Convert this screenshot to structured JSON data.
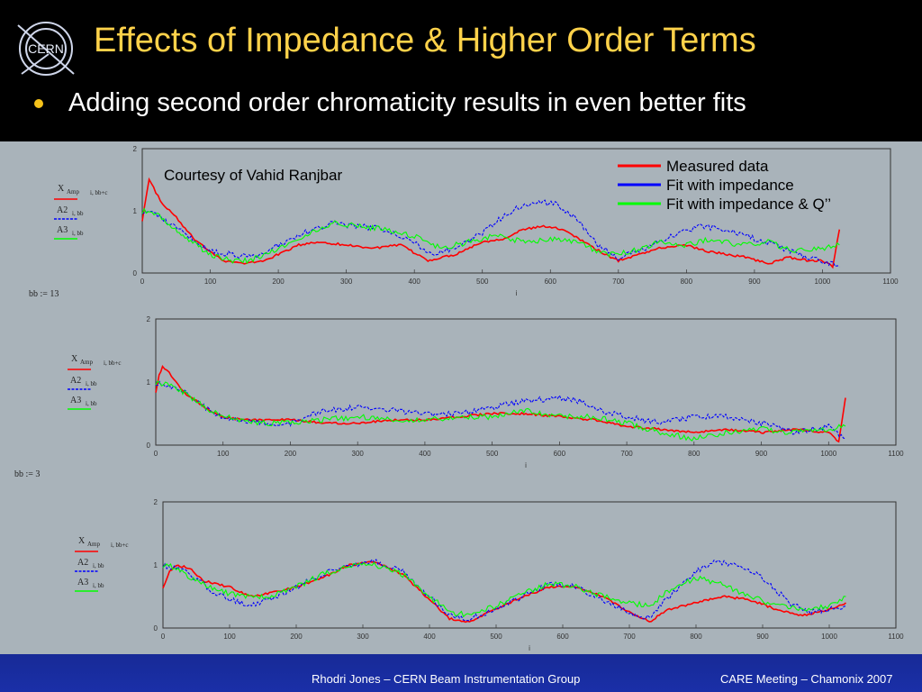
{
  "slide": {
    "title": "Effects of Impedance & Higher Order Terms",
    "bullet": "Adding second order chromaticity results in even better fits",
    "footer_left": "Rhodri Jones – CERN Beam Instrumentation Group",
    "footer_right": "CARE Meeting – Chamonix 2007",
    "logo_text": "CERN"
  },
  "annotations": {
    "courtesy": "Courtesy of Vahid Ranjbar"
  },
  "colors": {
    "measured": "#ff0000",
    "impedance": "#0000ff",
    "impedance_q2": "#00ff00",
    "title": "#ffd24a"
  },
  "legend": [
    {
      "label": "Measured data",
      "color": "#ff0000"
    },
    {
      "label": "Fit with impedance",
      "color": "#0000ff"
    },
    {
      "label": "Fit with impedance & Q’’",
      "color": "#00ff00"
    }
  ],
  "chart_data": [
    {
      "type": "line",
      "xlabel": "i",
      "ylim": [
        0,
        2
      ],
      "xlim": [
        0,
        1100
      ],
      "xticks": [
        0,
        100,
        200,
        300,
        400,
        500,
        600,
        700,
        800,
        900,
        1000,
        1100
      ],
      "yticks": [
        0,
        1,
        2
      ],
      "grid": false,
      "legend_placement": "top-right",
      "param_label": "",
      "y_labels": [
        "X",
        "Amp",
        "i, bb+c",
        "A2",
        "i, bb",
        "A3",
        "i, bb"
      ],
      "series": [
        {
          "name": "Measured data",
          "x": [
            0,
            10,
            20,
            30,
            40,
            50,
            60,
            80,
            100,
            120,
            150,
            180,
            200,
            230,
            260,
            300,
            340,
            380,
            420,
            460,
            500,
            530,
            560,
            590,
            620,
            650,
            680,
            700,
            730,
            760,
            800,
            830,
            860,
            890,
            920,
            950,
            980,
            1000,
            1015,
            1025
          ],
          "values": [
            0.85,
            1.5,
            1.3,
            1.1,
            1.0,
            0.9,
            0.75,
            0.5,
            0.35,
            0.2,
            0.15,
            0.2,
            0.3,
            0.45,
            0.5,
            0.45,
            0.4,
            0.45,
            0.2,
            0.3,
            0.5,
            0.55,
            0.7,
            0.75,
            0.7,
            0.5,
            0.3,
            0.2,
            0.3,
            0.4,
            0.45,
            0.35,
            0.3,
            0.25,
            0.15,
            0.25,
            0.2,
            0.2,
            0.1,
            0.7
          ]
        },
        {
          "name": "Fit with impedance",
          "x": [
            0,
            20,
            40,
            60,
            80,
            100,
            130,
            160,
            200,
            240,
            280,
            320,
            360,
            400,
            420,
            460,
            500,
            530,
            550,
            580,
            610,
            640,
            670,
            700,
            740,
            780,
            820,
            860,
            900,
            940,
            980,
            1000,
            1025
          ],
          "values": [
            1.0,
            0.95,
            0.8,
            0.65,
            0.5,
            0.35,
            0.3,
            0.25,
            0.45,
            0.65,
            0.8,
            0.75,
            0.7,
            0.5,
            0.3,
            0.4,
            0.65,
            0.9,
            1.05,
            1.15,
            1.1,
            0.85,
            0.45,
            0.25,
            0.4,
            0.6,
            0.75,
            0.7,
            0.55,
            0.4,
            0.25,
            0.2,
            0.1
          ]
        },
        {
          "name": "Fit with impedance & Q’’",
          "x": [
            0,
            20,
            40,
            60,
            80,
            100,
            130,
            160,
            200,
            240,
            280,
            320,
            360,
            400,
            440,
            480,
            520,
            560,
            600,
            640,
            680,
            720,
            760,
            800,
            840,
            880,
            920,
            960,
            1000,
            1025
          ],
          "values": [
            1.0,
            0.95,
            0.75,
            0.6,
            0.45,
            0.3,
            0.2,
            0.2,
            0.4,
            0.6,
            0.8,
            0.75,
            0.7,
            0.6,
            0.4,
            0.5,
            0.6,
            0.5,
            0.55,
            0.5,
            0.3,
            0.35,
            0.5,
            0.45,
            0.55,
            0.45,
            0.5,
            0.35,
            0.4,
            0.45
          ]
        }
      ]
    },
    {
      "type": "line",
      "xlabel": "i",
      "ylim": [
        0,
        2
      ],
      "xlim": [
        0,
        1100
      ],
      "xticks": [
        0,
        100,
        200,
        300,
        400,
        500,
        600,
        700,
        800,
        900,
        1000,
        1100
      ],
      "yticks": [
        0,
        1,
        2
      ],
      "grid": false,
      "param_label": "bb  :=  13",
      "y_labels": [
        "X",
        "Amp",
        "i, bb+c",
        "A2",
        "i, bb",
        "A3",
        "i, bb"
      ],
      "series": [
        {
          "name": "Measured data",
          "x": [
            0,
            5,
            10,
            20,
            30,
            40,
            60,
            80,
            100,
            130,
            160,
            200,
            250,
            300,
            350,
            400,
            450,
            500,
            550,
            600,
            650,
            700,
            750,
            800,
            850,
            900,
            950,
            1000,
            1015,
            1025
          ],
          "values": [
            0.85,
            1.1,
            1.25,
            1.15,
            1.0,
            0.85,
            0.7,
            0.55,
            0.45,
            0.4,
            0.4,
            0.4,
            0.35,
            0.35,
            0.4,
            0.4,
            0.45,
            0.5,
            0.5,
            0.45,
            0.4,
            0.3,
            0.25,
            0.2,
            0.25,
            0.2,
            0.25,
            0.2,
            0.05,
            0.75
          ]
        },
        {
          "name": "Fit with impedance",
          "x": [
            0,
            20,
            40,
            60,
            80,
            100,
            130,
            160,
            200,
            250,
            300,
            350,
            400,
            450,
            500,
            550,
            600,
            630,
            660,
            700,
            750,
            800,
            850,
            900,
            950,
            1000,
            1025
          ],
          "values": [
            1.0,
            0.95,
            0.85,
            0.7,
            0.55,
            0.45,
            0.4,
            0.35,
            0.35,
            0.55,
            0.6,
            0.55,
            0.5,
            0.5,
            0.6,
            0.7,
            0.75,
            0.7,
            0.55,
            0.45,
            0.35,
            0.45,
            0.45,
            0.35,
            0.2,
            0.3,
            0.1
          ]
        },
        {
          "name": "Fit with impedance & Q’’",
          "x": [
            0,
            20,
            40,
            60,
            80,
            100,
            130,
            160,
            200,
            250,
            300,
            350,
            400,
            450,
            500,
            550,
            600,
            650,
            700,
            750,
            800,
            850,
            900,
            950,
            1000,
            1025
          ],
          "values": [
            1.0,
            0.95,
            0.85,
            0.7,
            0.55,
            0.45,
            0.4,
            0.35,
            0.35,
            0.4,
            0.45,
            0.4,
            0.4,
            0.45,
            0.45,
            0.55,
            0.45,
            0.45,
            0.35,
            0.2,
            0.1,
            0.2,
            0.25,
            0.2,
            0.25,
            0.3
          ]
        }
      ]
    },
    {
      "type": "line",
      "xlabel": "i",
      "ylim": [
        0,
        2
      ],
      "xlim": [
        0,
        1100
      ],
      "xticks": [
        0,
        100,
        200,
        300,
        400,
        500,
        600,
        700,
        800,
        900,
        1000,
        1100
      ],
      "yticks": [
        0,
        1,
        2
      ],
      "grid": false,
      "param_label": "bb  :=  3",
      "y_labels": [
        "X",
        "Amp",
        "i, bb+c",
        "A2",
        "i, bb",
        "A3",
        "i, bb"
      ],
      "series": [
        {
          "name": "Measured data",
          "x": [
            0,
            10,
            20,
            40,
            60,
            80,
            100,
            130,
            160,
            200,
            240,
            280,
            320,
            360,
            400,
            430,
            460,
            500,
            540,
            580,
            620,
            660,
            700,
            730,
            760,
            800,
            840,
            880,
            920,
            960,
            1000,
            1025
          ],
          "values": [
            0.65,
            0.9,
            1.0,
            0.95,
            0.75,
            0.7,
            0.65,
            0.5,
            0.55,
            0.65,
            0.8,
            1.0,
            1.05,
            0.85,
            0.45,
            0.15,
            0.1,
            0.3,
            0.5,
            0.65,
            0.65,
            0.5,
            0.25,
            0.1,
            0.3,
            0.4,
            0.5,
            0.45,
            0.3,
            0.2,
            0.3,
            0.4
          ]
        },
        {
          "name": "Fit with impedance",
          "x": [
            0,
            20,
            40,
            60,
            80,
            100,
            130,
            160,
            200,
            240,
            280,
            320,
            360,
            400,
            430,
            460,
            500,
            540,
            580,
            620,
            660,
            700,
            730,
            760,
            800,
            830,
            860,
            900,
            940,
            970,
            1000,
            1025
          ],
          "values": [
            1.0,
            0.95,
            0.85,
            0.7,
            0.55,
            0.45,
            0.35,
            0.45,
            0.65,
            0.85,
            1.0,
            1.05,
            0.9,
            0.5,
            0.2,
            0.15,
            0.3,
            0.5,
            0.7,
            0.65,
            0.45,
            0.25,
            0.15,
            0.5,
            0.9,
            1.05,
            1.0,
            0.8,
            0.4,
            0.25,
            0.3,
            0.35
          ]
        },
        {
          "name": "Fit with impedance & Q’’",
          "x": [
            0,
            20,
            40,
            60,
            80,
            100,
            130,
            160,
            200,
            240,
            280,
            320,
            360,
            400,
            430,
            460,
            500,
            540,
            580,
            620,
            660,
            700,
            730,
            760,
            800,
            840,
            880,
            920,
            960,
            1000,
            1025
          ],
          "values": [
            1.0,
            0.95,
            0.8,
            0.7,
            0.6,
            0.55,
            0.5,
            0.5,
            0.65,
            0.85,
            1.0,
            1.0,
            0.85,
            0.5,
            0.25,
            0.2,
            0.35,
            0.55,
            0.7,
            0.65,
            0.5,
            0.4,
            0.35,
            0.6,
            0.8,
            0.7,
            0.5,
            0.35,
            0.3,
            0.35,
            0.5
          ]
        }
      ]
    }
  ]
}
